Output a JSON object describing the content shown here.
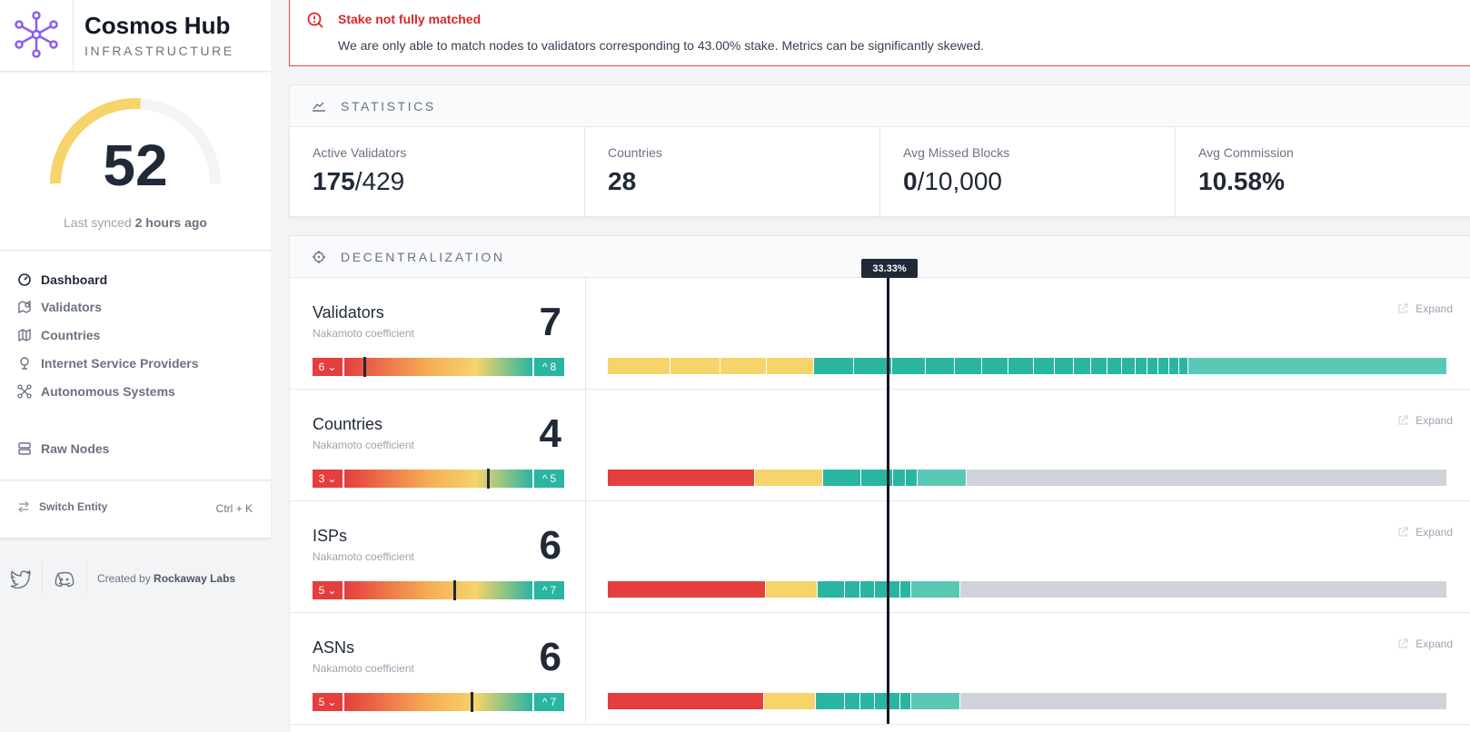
{
  "brand": {
    "title": "Cosmos Hub",
    "subtitle": "INFRASTRUCTURE"
  },
  "score": {
    "value": "52",
    "synced_prefix": "Last synced",
    "synced_value": "2 hours ago",
    "gauge_fraction": 0.52
  },
  "nav": {
    "items": [
      {
        "label": "Dashboard",
        "icon": "gauge-icon",
        "active": true
      },
      {
        "label": "Validators",
        "icon": "map-pin-icon",
        "active": false
      },
      {
        "label": "Countries",
        "icon": "map-icon",
        "active": false
      },
      {
        "label": "Internet Service Providers",
        "icon": "satellite-dish-icon",
        "active": false
      },
      {
        "label": "Autonomous Systems",
        "icon": "network-icon",
        "active": false
      },
      {
        "label": "Raw Nodes",
        "icon": "server-icon",
        "active": false
      }
    ]
  },
  "switch": {
    "label": "Switch Entity",
    "shortcut": "Ctrl + K"
  },
  "footer": {
    "created_by": "Created by",
    "author": "Rockaway Labs"
  },
  "alert": {
    "title": "Stake not fully matched",
    "text": "We are only able to match nodes to validators corresponding to 43.00% stake. Metrics can be significantly skewed."
  },
  "statistics": {
    "header": "STATISTICS",
    "items": [
      {
        "label": "Active Validators",
        "value_bold": "175",
        "value_rest": "/429"
      },
      {
        "label": "Countries",
        "value_bold": "28",
        "value_rest": ""
      },
      {
        "label": "Avg Missed Blocks",
        "value_bold": "0",
        "value_rest": "/10,000"
      },
      {
        "label": "Avg Commission",
        "value_bold": "10.58%",
        "value_rest": ""
      }
    ]
  },
  "decentralization": {
    "header": "DECENTRALIZATION",
    "threshold_label": "33.33%",
    "subtitle": "Nakamoto coefficient",
    "expand_label": "Expand",
    "rows": [
      {
        "title": "Validators",
        "value": "7",
        "low": "6",
        "high": "8",
        "marker_fraction": 0.1,
        "segments": [
          [
            0.073,
            "#f6d36b"
          ],
          [
            0.058,
            "#f6d36b"
          ],
          [
            0.054,
            "#f6d36b"
          ],
          [
            0.055,
            "#f6d36b"
          ],
          [
            0.047,
            "#2ab5a0"
          ],
          [
            0.044,
            "#2ab5a0"
          ],
          [
            0.04,
            "#2ab5a0"
          ],
          [
            0.033,
            "#2ab5a0"
          ],
          [
            0.032,
            "#2ab5a0"
          ],
          [
            0.031,
            "#2ab5a0"
          ],
          [
            0.029,
            "#2ab5a0"
          ],
          [
            0.025,
            "#2ab5a0"
          ],
          [
            0.022,
            "#2ab5a0"
          ],
          [
            0.02,
            "#2ab5a0"
          ],
          [
            0.019,
            "#2ab5a0"
          ],
          [
            0.017,
            "#2ab5a0"
          ],
          [
            0.016,
            "#2ab5a0"
          ],
          [
            0.014,
            "#2ab5a0"
          ],
          [
            0.013,
            "#2ab5a0"
          ],
          [
            0.012,
            "#2ab5a0"
          ],
          [
            0.012,
            "#2ab5a0"
          ],
          [
            0.01,
            "#2ab5a0"
          ],
          [
            0.302,
            "#5bc8b5"
          ]
        ]
      },
      {
        "title": "Countries",
        "value": "4",
        "low": "3",
        "high": "5",
        "marker_fraction": 0.76,
        "segments": [
          [
            0.175,
            "#e53e3e"
          ],
          [
            0.082,
            "#f6d36b"
          ],
          [
            0.045,
            "#2ab5a0"
          ],
          [
            0.038,
            "#2ab5a0"
          ],
          [
            0.015,
            "#2ab5a0"
          ],
          [
            0.014,
            "#2ab5a0"
          ],
          [
            0.058,
            "#5bc8b5"
          ],
          [
            0.573,
            "#cfd3da"
          ]
        ]
      },
      {
        "title": "ISPs",
        "value": "6",
        "low": "5",
        "high": "7",
        "marker_fraction": 0.58,
        "segments": [
          [
            0.188,
            "#e53e3e"
          ],
          [
            0.062,
            "#f6d36b"
          ],
          [
            0.033,
            "#2ab5a0"
          ],
          [
            0.018,
            "#2ab5a0"
          ],
          [
            0.017,
            "#2ab5a0"
          ],
          [
            0.016,
            "#2ab5a0"
          ],
          [
            0.015,
            "#2ab5a0"
          ],
          [
            0.013,
            "#2ab5a0"
          ],
          [
            0.058,
            "#5bc8b5"
          ],
          [
            0.58,
            "#cfd3da"
          ]
        ]
      },
      {
        "title": "ASNs",
        "value": "6",
        "low": "5",
        "high": "7",
        "marker_fraction": 0.67,
        "segments": [
          [
            0.186,
            "#e53e3e"
          ],
          [
            0.062,
            "#f6d36b"
          ],
          [
            0.034,
            "#2ab5a0"
          ],
          [
            0.019,
            "#2ab5a0"
          ],
          [
            0.017,
            "#2ab5a0"
          ],
          [
            0.016,
            "#2ab5a0"
          ],
          [
            0.015,
            "#2ab5a0"
          ],
          [
            0.013,
            "#2ab5a0"
          ],
          [
            0.058,
            "#5bc8b5"
          ],
          [
            0.58,
            "#cfd3da"
          ]
        ]
      }
    ]
  },
  "colors": {
    "accent": "#8b5cf6",
    "gauge": "#f6d36b",
    "alert": "#ef4444",
    "teal": "#2ab5a0",
    "red": "#e53e3e"
  }
}
